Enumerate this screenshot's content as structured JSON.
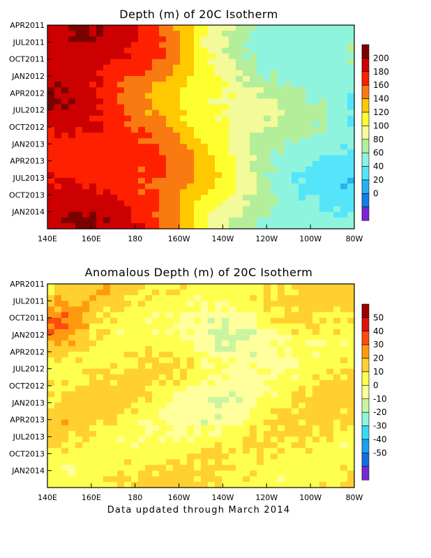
{
  "chart_data": [
    {
      "type": "heatmap",
      "title": "Depth (m) of 20C Isotherm",
      "x_tick_labels": [
        "140E",
        "160E",
        "180",
        "160W",
        "140W",
        "120W",
        "100W",
        "80W"
      ],
      "x_ticks_deg_east": [
        140,
        160,
        180,
        200,
        220,
        240,
        260,
        280
      ],
      "xlim": [
        140,
        280
      ],
      "y_tick_labels": [
        "APR2011",
        "JUL2011",
        "OCT2011",
        "JAN2012",
        "APR2012",
        "JUL2012",
        "OCT2012",
        "JAN2013",
        "APR2013",
        "JUL2013",
        "OCT2013",
        "JAN2014"
      ],
      "y_range": [
        "APR2011",
        "MAR2014"
      ],
      "colorbar_labels": [
        "200",
        "180",
        "160",
        "140",
        "120",
        "100",
        "80",
        "60",
        "40",
        "20",
        "0"
      ],
      "colorbar_colors": [
        "#7b0000",
        "#cc0000",
        "#ff2000",
        "#f97a10",
        "#ffc800",
        "#ffff30",
        "#f3fa9a",
        "#b5ee9a",
        "#8ef4de",
        "#55e5fb",
        "#29b0f1",
        "#0f7ee9",
        "#7a26d8"
      ],
      "depth_by_longitude_m": {
        "lon": [
          140,
          150,
          160,
          170,
          180,
          190,
          200,
          210,
          220,
          230,
          240,
          250,
          260,
          270,
          280
        ],
        "depth": [
          185,
          190,
          185,
          175,
          165,
          155,
          140,
          115,
          100,
          80,
          65,
          55,
          50,
          45,
          40
        ]
      }
    },
    {
      "type": "heatmap",
      "title": "Anomalous Depth (m) of 20C Isotherm",
      "x_tick_labels": [
        "140E",
        "160E",
        "180",
        "160W",
        "140W",
        "120W",
        "100W",
        "80W"
      ],
      "x_ticks_deg_east": [
        140,
        160,
        180,
        200,
        220,
        240,
        260,
        280
      ],
      "xlim": [
        140,
        280
      ],
      "y_tick_labels": [
        "APR2011",
        "JUL2011",
        "OCT2011",
        "JAN2012",
        "APR2012",
        "JUL2012",
        "OCT2012",
        "JAN2013",
        "APR2013",
        "JUL2013",
        "OCT2013",
        "JAN2014"
      ],
      "y_range": [
        "APR2011",
        "MAR2014"
      ],
      "colorbar_labels": [
        "50",
        "40",
        "30",
        "20",
        "10",
        "0",
        "-10",
        "-20",
        "-30",
        "-40",
        "-50"
      ],
      "colorbar_colors": [
        "#9b0000",
        "#e01010",
        "#ff4a10",
        "#ff9a10",
        "#ffd030",
        "#ffff50",
        "#ffff9e",
        "#c9f5a2",
        "#8ef4de",
        "#3cd8f7",
        "#1aa0ee",
        "#0f6fe0",
        "#7a26d8"
      ]
    }
  ],
  "footer": "Data updated through March 2014"
}
